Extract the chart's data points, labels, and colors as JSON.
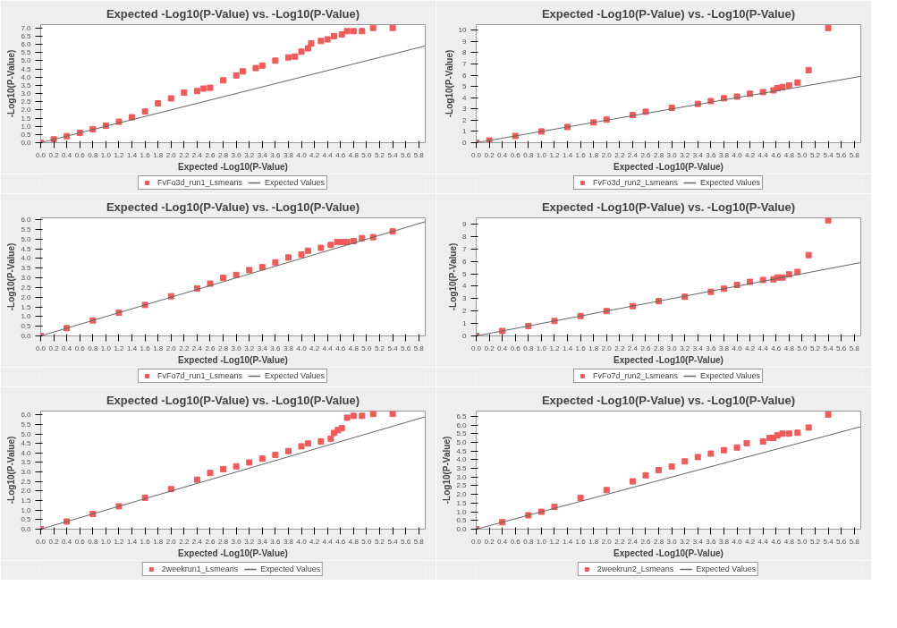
{
  "chart_data": [
    {
      "type": "scatter",
      "title": "Expected -Log10(P-Value) vs. -Log10(P-Value)",
      "xlabel": "Expected -Log10(P-Value)",
      "ylabel": "-Log10(P-Value)",
      "marker": "square",
      "legend": "bottom",
      "xlim": [
        0,
        5.9
      ],
      "ylim": [
        0,
        7.2
      ],
      "xticks": [
        {
          "value": 0,
          "label": "0.0"
        },
        {
          "value": 0.2,
          "label": "0.2"
        },
        {
          "value": 0.4,
          "label": "0.4"
        },
        {
          "value": 0.6,
          "label": "0.6"
        },
        {
          "value": 0.8,
          "label": "0.8"
        },
        {
          "value": 1,
          "label": "1.0"
        },
        {
          "value": 1.2,
          "label": "1.2"
        },
        {
          "value": 1.4,
          "label": "1.4"
        },
        {
          "value": 1.6,
          "label": "1.6"
        },
        {
          "value": 1.8,
          "label": "1.8"
        },
        {
          "value": 2,
          "label": "2.0"
        },
        {
          "value": 2.2,
          "label": "2.2"
        },
        {
          "value": 2.4,
          "label": "2.4"
        },
        {
          "value": 2.6,
          "label": "2.6"
        },
        {
          "value": 2.8,
          "label": "2.8"
        },
        {
          "value": 3,
          "label": "3.0"
        },
        {
          "value": 3.2,
          "label": "3.2"
        },
        {
          "value": 3.4,
          "label": "3.4"
        },
        {
          "value": 3.6,
          "label": "3.6"
        },
        {
          "value": 3.8,
          "label": "3.8"
        },
        {
          "value": 4,
          "label": "4.0"
        },
        {
          "value": 4.2,
          "label": "4.2"
        },
        {
          "value": 4.4,
          "label": "4.4"
        },
        {
          "value": 4.6,
          "label": "4.6"
        },
        {
          "value": 4.8,
          "label": "4.8"
        },
        {
          "value": 5,
          "label": "5.0"
        },
        {
          "value": 5.2,
          "label": "5.2"
        },
        {
          "value": 5.4,
          "label": "5.4"
        },
        {
          "value": 5.6,
          "label": "5.6"
        },
        {
          "value": 5.8,
          "label": "5.8"
        }
      ],
      "yticks": [
        {
          "value": 0,
          "label": "0.0"
        },
        {
          "value": 0.5,
          "label": "0.5"
        },
        {
          "value": 1,
          "label": "1.0"
        },
        {
          "value": 1.5,
          "label": "1.5"
        },
        {
          "value": 2,
          "label": "2.0"
        },
        {
          "value": 2.5,
          "label": "2.5"
        },
        {
          "value": 3,
          "label": "3.0"
        },
        {
          "value": 3.5,
          "label": "3.5"
        },
        {
          "value": 4,
          "label": "4.0"
        },
        {
          "value": 4.5,
          "label": "4.5"
        },
        {
          "value": 5,
          "label": "5.0"
        },
        {
          "value": 5.5,
          "label": "5.5"
        },
        {
          "value": 6,
          "label": "6.0"
        },
        {
          "value": 6.5,
          "label": "6.5"
        },
        {
          "value": 7,
          "label": "7.0"
        }
      ],
      "series": [
        {
          "name": "FvFo3d_run1_Lsmeans",
          "color": "#f25a5a",
          "x": [
            0,
            0.2,
            0.4,
            0.6,
            0.8,
            1.0,
            1.2,
            1.4,
            1.6,
            1.8,
            2.0,
            2.2,
            2.4,
            2.5,
            2.6,
            2.8,
            3.0,
            3.1,
            3.3,
            3.4,
            3.6,
            3.8,
            3.9,
            4.0,
            4.1,
            4.15,
            4.3,
            4.4,
            4.5,
            4.62,
            4.7,
            4.8,
            4.93,
            5.1,
            5.4
          ],
          "values": [
            0,
            0.2,
            0.4,
            0.6,
            0.82,
            1.03,
            1.28,
            1.55,
            1.9,
            2.4,
            2.7,
            3.05,
            3.15,
            3.3,
            3.35,
            3.8,
            4.1,
            4.35,
            4.55,
            4.7,
            5.0,
            5.2,
            5.25,
            5.55,
            5.75,
            6.05,
            6.2,
            6.3,
            6.5,
            6.6,
            6.8,
            6.8,
            6.8,
            7.0,
            7.0
          ]
        },
        {
          "name": "Expected Values",
          "type": "line",
          "marker": "none",
          "color": "#666666",
          "x": [
            0,
            5.9
          ],
          "values": [
            0,
            5.9
          ]
        }
      ]
    },
    {
      "type": "scatter",
      "title": "Expected -Log10(P-Value) vs. -Log10(P-Value)",
      "xlabel": "Expected -Log10(P-Value)",
      "ylabel": "-Log10(P-Value)",
      "marker": "square",
      "legend": "bottom",
      "xlim": [
        0,
        5.9
      ],
      "ylim": [
        0,
        10.5
      ],
      "xticks": [
        {
          "value": 0,
          "label": "0.0"
        },
        {
          "value": 0.2,
          "label": "0.2"
        },
        {
          "value": 0.4,
          "label": "0.4"
        },
        {
          "value": 0.6,
          "label": "0.6"
        },
        {
          "value": 0.8,
          "label": "0.8"
        },
        {
          "value": 1,
          "label": "1.0"
        },
        {
          "value": 1.2,
          "label": "1.2"
        },
        {
          "value": 1.4,
          "label": "1.4"
        },
        {
          "value": 1.6,
          "label": "1.6"
        },
        {
          "value": 1.8,
          "label": "1.8"
        },
        {
          "value": 2,
          "label": "2.0"
        },
        {
          "value": 2.2,
          "label": "2.2"
        },
        {
          "value": 2.4,
          "label": "2.4"
        },
        {
          "value": 2.6,
          "label": "2.6"
        },
        {
          "value": 2.8,
          "label": "2.8"
        },
        {
          "value": 3,
          "label": "3.0"
        },
        {
          "value": 3.2,
          "label": "3.2"
        },
        {
          "value": 3.4,
          "label": "3.4"
        },
        {
          "value": 3.6,
          "label": "3.6"
        },
        {
          "value": 3.8,
          "label": "3.8"
        },
        {
          "value": 4,
          "label": "4.0"
        },
        {
          "value": 4.2,
          "label": "4.2"
        },
        {
          "value": 4.4,
          "label": "4.4"
        },
        {
          "value": 4.6,
          "label": "4.6"
        },
        {
          "value": 4.8,
          "label": "4.8"
        },
        {
          "value": 5,
          "label": "5.0"
        },
        {
          "value": 5.2,
          "label": "5.2"
        },
        {
          "value": 5.4,
          "label": "5.4"
        },
        {
          "value": 5.6,
          "label": "5.6"
        },
        {
          "value": 5.8,
          "label": "5.8"
        }
      ],
      "yticks": [
        0,
        1,
        2,
        3,
        4,
        5,
        6,
        7,
        8,
        9,
        10
      ],
      "series": [
        {
          "name": "FvFo3d_run2_Lsmeans",
          "color": "#f25a5a",
          "x": [
            0,
            0.2,
            0.6,
            1.0,
            1.4,
            1.8,
            2.0,
            2.4,
            2.6,
            3.0,
            3.4,
            3.6,
            3.8,
            4.0,
            4.2,
            4.4,
            4.56,
            4.62,
            4.7,
            4.8,
            4.93,
            5.1,
            5.4
          ],
          "values": [
            0,
            0.2,
            0.6,
            1.0,
            1.4,
            1.8,
            2.05,
            2.45,
            2.75,
            3.1,
            3.45,
            3.7,
            3.95,
            4.1,
            4.35,
            4.5,
            4.65,
            4.85,
            4.95,
            5.1,
            5.35,
            6.45,
            10.2
          ]
        },
        {
          "name": "Expected Values",
          "type": "line",
          "marker": "none",
          "color": "#666666",
          "x": [
            0,
            5.9
          ],
          "values": [
            0,
            5.9
          ]
        }
      ]
    },
    {
      "type": "scatter",
      "title": "Expected -Log10(P-Value) vs. -Log10(P-Value)",
      "xlabel": "Expected -Log10(P-Value)",
      "ylabel": "-Log10(P-Value)",
      "marker": "square",
      "legend": "bottom",
      "xlim": [
        0,
        5.9
      ],
      "ylim": [
        0,
        6.1
      ],
      "xticks": [
        {
          "value": 0,
          "label": "0.0"
        },
        {
          "value": 0.2,
          "label": "0.2"
        },
        {
          "value": 0.4,
          "label": "0.4"
        },
        {
          "value": 0.6,
          "label": "0.6"
        },
        {
          "value": 0.8,
          "label": "0.8"
        },
        {
          "value": 1,
          "label": "1.0"
        },
        {
          "value": 1.2,
          "label": "1.2"
        },
        {
          "value": 1.4,
          "label": "1.4"
        },
        {
          "value": 1.6,
          "label": "1.6"
        },
        {
          "value": 1.8,
          "label": "1.8"
        },
        {
          "value": 2,
          "label": "2.0"
        },
        {
          "value": 2.2,
          "label": "2.2"
        },
        {
          "value": 2.4,
          "label": "2.4"
        },
        {
          "value": 2.6,
          "label": "2.6"
        },
        {
          "value": 2.8,
          "label": "2.8"
        },
        {
          "value": 3,
          "label": "3.0"
        },
        {
          "value": 3.2,
          "label": "3.2"
        },
        {
          "value": 3.4,
          "label": "3.4"
        },
        {
          "value": 3.6,
          "label": "3.6"
        },
        {
          "value": 3.8,
          "label": "3.8"
        },
        {
          "value": 4,
          "label": "4.0"
        },
        {
          "value": 4.2,
          "label": "4.2"
        },
        {
          "value": 4.4,
          "label": "4.4"
        },
        {
          "value": 4.6,
          "label": "4.6"
        },
        {
          "value": 4.8,
          "label": "4.8"
        },
        {
          "value": 5,
          "label": "5.0"
        },
        {
          "value": 5.2,
          "label": "5.2"
        },
        {
          "value": 5.4,
          "label": "5.4"
        },
        {
          "value": 5.6,
          "label": "5.6"
        },
        {
          "value": 5.8,
          "label": "5.8"
        }
      ],
      "yticks": [
        {
          "value": 0,
          "label": "0.0"
        },
        {
          "value": 0.5,
          "label": "0.5"
        },
        {
          "value": 1,
          "label": "1.0"
        },
        {
          "value": 1.5,
          "label": "1.5"
        },
        {
          "value": 2,
          "label": "2.0"
        },
        {
          "value": 2.5,
          "label": "2.5"
        },
        {
          "value": 3,
          "label": "3.0"
        },
        {
          "value": 3.5,
          "label": "3.5"
        },
        {
          "value": 4,
          "label": "4.0"
        },
        {
          "value": 4.5,
          "label": "4.5"
        },
        {
          "value": 5,
          "label": "5.0"
        },
        {
          "value": 5.5,
          "label": "5.5"
        },
        {
          "value": 6,
          "label": "6.0"
        }
      ],
      "series": [
        {
          "name": "FvFo7d_run1_Lsmeans",
          "color": "#f25a5a",
          "x": [
            0,
            0.4,
            0.8,
            1.2,
            1.6,
            2.0,
            2.4,
            2.6,
            2.8,
            3.0,
            3.2,
            3.4,
            3.6,
            3.8,
            4.0,
            4.1,
            4.3,
            4.45,
            4.55,
            4.62,
            4.7,
            4.8,
            4.93,
            5.1,
            5.4
          ],
          "values": [
            0,
            0.4,
            0.8,
            1.2,
            1.6,
            2.05,
            2.45,
            2.7,
            3.0,
            3.15,
            3.4,
            3.55,
            3.8,
            4.05,
            4.2,
            4.4,
            4.55,
            4.7,
            4.85,
            4.85,
            4.85,
            4.9,
            5.05,
            5.1,
            5.4
          ]
        },
        {
          "name": "Expected Values",
          "type": "line",
          "marker": "none",
          "color": "#666666",
          "x": [
            0,
            5.9
          ],
          "values": [
            0,
            5.9
          ]
        }
      ]
    },
    {
      "type": "scatter",
      "title": "Expected -Log10(P-Value) vs. -Log10(P-Value)",
      "xlabel": "Expected -Log10(P-Value)",
      "ylabel": "-Log10(P-Value)",
      "marker": "square",
      "legend": "bottom",
      "xlim": [
        0,
        5.9
      ],
      "ylim": [
        0,
        9.5
      ],
      "xticks": [
        {
          "value": 0,
          "label": "0.0"
        },
        {
          "value": 0.2,
          "label": "0.2"
        },
        {
          "value": 0.4,
          "label": "0.4"
        },
        {
          "value": 0.6,
          "label": "0.6"
        },
        {
          "value": 0.8,
          "label": "0.8"
        },
        {
          "value": 1,
          "label": "1.0"
        },
        {
          "value": 1.2,
          "label": "1.2"
        },
        {
          "value": 1.4,
          "label": "1.4"
        },
        {
          "value": 1.6,
          "label": "1.6"
        },
        {
          "value": 1.8,
          "label": "1.8"
        },
        {
          "value": 2,
          "label": "2.0"
        },
        {
          "value": 2.2,
          "label": "2.2"
        },
        {
          "value": 2.4,
          "label": "2.4"
        },
        {
          "value": 2.6,
          "label": "2.6"
        },
        {
          "value": 2.8,
          "label": "2.8"
        },
        {
          "value": 3,
          "label": "3.0"
        },
        {
          "value": 3.2,
          "label": "3.2"
        },
        {
          "value": 3.4,
          "label": "3.4"
        },
        {
          "value": 3.6,
          "label": "3.6"
        },
        {
          "value": 3.8,
          "label": "3.8"
        },
        {
          "value": 4,
          "label": "4.0"
        },
        {
          "value": 4.2,
          "label": "4.2"
        },
        {
          "value": 4.4,
          "label": "4.4"
        },
        {
          "value": 4.6,
          "label": "4.6"
        },
        {
          "value": 4.8,
          "label": "4.8"
        },
        {
          "value": 5,
          "label": "5.0"
        },
        {
          "value": 5.2,
          "label": "5.2"
        },
        {
          "value": 5.4,
          "label": "5.4"
        },
        {
          "value": 5.6,
          "label": "5.6"
        },
        {
          "value": 5.8,
          "label": "5.8"
        }
      ],
      "yticks": [
        0,
        1,
        2,
        3,
        4,
        5,
        6,
        7,
        8,
        9
      ],
      "series": [
        {
          "name": "FvFo7d_run2_Lsmeans",
          "color": "#f25a5a",
          "x": [
            0,
            0.4,
            0.8,
            1.2,
            1.6,
            2.0,
            2.4,
            2.8,
            3.2,
            3.6,
            3.8,
            4.0,
            4.2,
            4.4,
            4.56,
            4.62,
            4.7,
            4.8,
            4.93,
            5.1,
            5.4
          ],
          "values": [
            0,
            0.4,
            0.8,
            1.2,
            1.6,
            2.0,
            2.4,
            2.8,
            3.15,
            3.55,
            3.8,
            4.1,
            4.35,
            4.5,
            4.55,
            4.7,
            4.7,
            4.95,
            5.15,
            6.5,
            9.3
          ]
        },
        {
          "name": "Expected Values",
          "type": "line",
          "marker": "none",
          "color": "#666666",
          "x": [
            0,
            5.9
          ],
          "values": [
            0,
            5.9
          ]
        }
      ]
    },
    {
      "type": "scatter",
      "title": "Expected -Log10(P-Value) vs. -Log10(P-Value)",
      "xlabel": "Expected -Log10(P-Value)",
      "ylabel": "-Log10(P-Value)",
      "marker": "square",
      "legend": "bottom",
      "xlim": [
        0,
        5.9
      ],
      "ylim": [
        0,
        6.2
      ],
      "xticks": [
        {
          "value": 0,
          "label": "0.0"
        },
        {
          "value": 0.2,
          "label": "0.2"
        },
        {
          "value": 0.4,
          "label": "0.4"
        },
        {
          "value": 0.6,
          "label": "0.6"
        },
        {
          "value": 0.8,
          "label": "0.8"
        },
        {
          "value": 1,
          "label": "1.0"
        },
        {
          "value": 1.2,
          "label": "1.2"
        },
        {
          "value": 1.4,
          "label": "1.4"
        },
        {
          "value": 1.6,
          "label": "1.6"
        },
        {
          "value": 1.8,
          "label": "1.8"
        },
        {
          "value": 2,
          "label": "2.0"
        },
        {
          "value": 2.2,
          "label": "2.2"
        },
        {
          "value": 2.4,
          "label": "2.4"
        },
        {
          "value": 2.6,
          "label": "2.6"
        },
        {
          "value": 2.8,
          "label": "2.8"
        },
        {
          "value": 3,
          "label": "3.0"
        },
        {
          "value": 3.2,
          "label": "3.2"
        },
        {
          "value": 3.4,
          "label": "3.4"
        },
        {
          "value": 3.6,
          "label": "3.6"
        },
        {
          "value": 3.8,
          "label": "3.8"
        },
        {
          "value": 4,
          "label": "4.0"
        },
        {
          "value": 4.2,
          "label": "4.2"
        },
        {
          "value": 4.4,
          "label": "4.4"
        },
        {
          "value": 4.6,
          "label": "4.6"
        },
        {
          "value": 4.8,
          "label": "4.8"
        },
        {
          "value": 5,
          "label": "5.0"
        },
        {
          "value": 5.2,
          "label": "5.2"
        },
        {
          "value": 5.4,
          "label": "5.4"
        },
        {
          "value": 5.6,
          "label": "5.6"
        },
        {
          "value": 5.8,
          "label": "5.8"
        }
      ],
      "yticks": [
        {
          "value": 0,
          "label": "0.0"
        },
        {
          "value": 0.5,
          "label": "0.5"
        },
        {
          "value": 1,
          "label": "1.0"
        },
        {
          "value": 1.5,
          "label": "1.5"
        },
        {
          "value": 2,
          "label": "2.0"
        },
        {
          "value": 2.5,
          "label": "2.5"
        },
        {
          "value": 3,
          "label": "3.0"
        },
        {
          "value": 3.5,
          "label": "3.5"
        },
        {
          "value": 4,
          "label": "4.0"
        },
        {
          "value": 4.5,
          "label": "4.5"
        },
        {
          "value": 5,
          "label": "5.0"
        },
        {
          "value": 5.5,
          "label": "5.5"
        },
        {
          "value": 6,
          "label": "6.0"
        }
      ],
      "series": [
        {
          "name": "2weekrun1_Lsmeans",
          "color": "#f25a5a",
          "x": [
            0,
            0.4,
            0.8,
            1.2,
            1.6,
            2.0,
            2.4,
            2.6,
            2.8,
            3.0,
            3.2,
            3.4,
            3.6,
            3.8,
            4.0,
            4.1,
            4.3,
            4.45,
            4.5,
            4.56,
            4.62,
            4.7,
            4.8,
            4.93,
            5.1,
            5.4
          ],
          "values": [
            0,
            0.4,
            0.8,
            1.2,
            1.65,
            2.1,
            2.6,
            2.95,
            3.15,
            3.3,
            3.5,
            3.7,
            3.9,
            4.1,
            4.35,
            4.5,
            4.6,
            4.75,
            5.05,
            5.2,
            5.3,
            5.85,
            5.95,
            5.95,
            6.05,
            6.05
          ]
        },
        {
          "name": "Expected Values",
          "type": "line",
          "marker": "none",
          "color": "#666666",
          "x": [
            0,
            5.9
          ],
          "values": [
            0,
            5.9
          ]
        }
      ]
    },
    {
      "type": "scatter",
      "title": "Expected -Log10(P-Value) vs. -Log10(P-Value)",
      "xlabel": "Expected -Log10(P-Value)",
      "ylabel": "-Log10(P-Value)",
      "marker": "square",
      "legend": "bottom",
      "xlim": [
        0,
        5.9
      ],
      "ylim": [
        0,
        6.8
      ],
      "xticks": [
        {
          "value": 0,
          "label": "0.0"
        },
        {
          "value": 0.2,
          "label": "0.2"
        },
        {
          "value": 0.4,
          "label": "0.4"
        },
        {
          "value": 0.6,
          "label": "0.6"
        },
        {
          "value": 0.8,
          "label": "0.8"
        },
        {
          "value": 1,
          "label": "1.0"
        },
        {
          "value": 1.2,
          "label": "1.2"
        },
        {
          "value": 1.4,
          "label": "1.4"
        },
        {
          "value": 1.6,
          "label": "1.6"
        },
        {
          "value": 1.8,
          "label": "1.8"
        },
        {
          "value": 2,
          "label": "2.0"
        },
        {
          "value": 2.2,
          "label": "2.2"
        },
        {
          "value": 2.4,
          "label": "2.4"
        },
        {
          "value": 2.6,
          "label": "2.6"
        },
        {
          "value": 2.8,
          "label": "2.8"
        },
        {
          "value": 3,
          "label": "3.0"
        },
        {
          "value": 3.2,
          "label": "3.2"
        },
        {
          "value": 3.4,
          "label": "3.4"
        },
        {
          "value": 3.6,
          "label": "3.6"
        },
        {
          "value": 3.8,
          "label": "3.8"
        },
        {
          "value": 4,
          "label": "4.0"
        },
        {
          "value": 4.2,
          "label": "4.2"
        },
        {
          "value": 4.4,
          "label": "4.4"
        },
        {
          "value": 4.6,
          "label": "4.6"
        },
        {
          "value": 4.8,
          "label": "4.8"
        },
        {
          "value": 5,
          "label": "5.0"
        },
        {
          "value": 5.2,
          "label": "5.2"
        },
        {
          "value": 5.4,
          "label": "5.4"
        },
        {
          "value": 5.6,
          "label": "5.6"
        },
        {
          "value": 5.8,
          "label": "5.8"
        }
      ],
      "yticks": [
        {
          "value": 0,
          "label": "0.0"
        },
        {
          "value": 0.5,
          "label": "0.5"
        },
        {
          "value": 1,
          "label": "1.0"
        },
        {
          "value": 1.5,
          "label": "1.5"
        },
        {
          "value": 2,
          "label": "2.0"
        },
        {
          "value": 2.5,
          "label": "2.5"
        },
        {
          "value": 3,
          "label": "3.0"
        },
        {
          "value": 3.5,
          "label": "3.5"
        },
        {
          "value": 4,
          "label": "4.0"
        },
        {
          "value": 4.5,
          "label": "4.5"
        },
        {
          "value": 5,
          "label": "5.0"
        },
        {
          "value": 5.5,
          "label": "5.5"
        },
        {
          "value": 6,
          "label": "6.0"
        },
        {
          "value": 6.5,
          "label": "6.5"
        }
      ],
      "series": [
        {
          "name": "2weekrun2_Lsmeans",
          "color": "#f25a5a",
          "x": [
            0,
            0.4,
            0.8,
            1.0,
            1.2,
            1.6,
            2.0,
            2.4,
            2.6,
            2.8,
            3.0,
            3.2,
            3.4,
            3.6,
            3.8,
            4.0,
            4.15,
            4.4,
            4.5,
            4.56,
            4.62,
            4.7,
            4.8,
            4.93,
            5.1,
            5.4
          ],
          "values": [
            0,
            0.4,
            0.8,
            1.0,
            1.28,
            1.8,
            2.25,
            2.75,
            3.1,
            3.4,
            3.6,
            3.9,
            4.15,
            4.35,
            4.55,
            4.7,
            4.95,
            5.05,
            5.25,
            5.25,
            5.4,
            5.5,
            5.5,
            5.55,
            5.85,
            6.6
          ]
        },
        {
          "name": "Expected Values",
          "type": "line",
          "marker": "none",
          "color": "#666666",
          "x": [
            0,
            5.9
          ],
          "values": [
            0,
            5.9
          ]
        }
      ]
    }
  ]
}
